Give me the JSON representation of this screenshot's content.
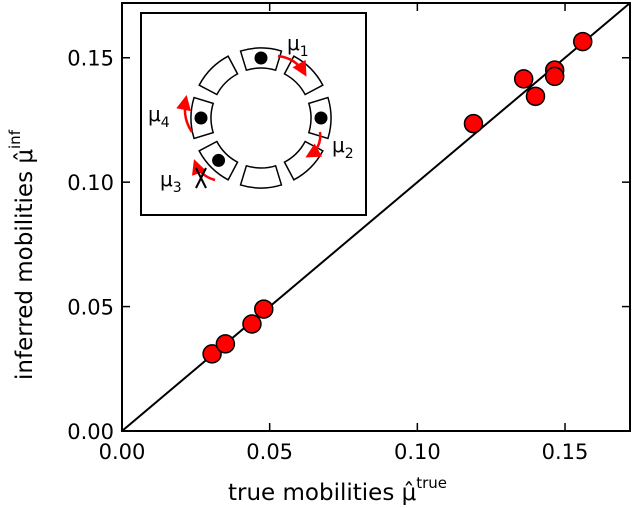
{
  "chart_data": {
    "type": "scatter",
    "xlabel": "true mobilities μ̂",
    "xlabel_sup": "true",
    "ylabel": "inferred mobilities μ̂",
    "ylabel_sup": "inf",
    "xlim": [
      0.0,
      0.172
    ],
    "ylim": [
      0.0,
      0.172
    ],
    "xticks": [
      0.0,
      0.05,
      0.1,
      0.15
    ],
    "xtick_labels": [
      "0.00",
      "0.05",
      "0.10",
      "0.15"
    ],
    "yticks": [
      0.0,
      0.05,
      0.1,
      0.15
    ],
    "ytick_labels": [
      "0.00",
      "0.05",
      "0.10",
      "0.15"
    ],
    "grid": false,
    "reference_line": "y = x",
    "point_color": "#ff0000",
    "points": [
      {
        "x": 0.0305,
        "y": 0.031
      },
      {
        "x": 0.035,
        "y": 0.035
      },
      {
        "x": 0.044,
        "y": 0.043
      },
      {
        "x": 0.048,
        "y": 0.049
      },
      {
        "x": 0.119,
        "y": 0.1235
      },
      {
        "x": 0.136,
        "y": 0.1415
      },
      {
        "x": 0.14,
        "y": 0.1345
      },
      {
        "x": 0.1465,
        "y": 0.145
      },
      {
        "x": 0.1465,
        "y": 0.1425
      },
      {
        "x": 0.156,
        "y": 0.1565
      }
    ],
    "inset": {
      "labels": [
        {
          "base": "μ",
          "sub": "1"
        },
        {
          "base": "μ",
          "sub": "2"
        },
        {
          "base": "μ",
          "sub": "3"
        },
        {
          "base": "μ",
          "sub": "4"
        }
      ],
      "arrow_color": "#ff0000"
    }
  }
}
